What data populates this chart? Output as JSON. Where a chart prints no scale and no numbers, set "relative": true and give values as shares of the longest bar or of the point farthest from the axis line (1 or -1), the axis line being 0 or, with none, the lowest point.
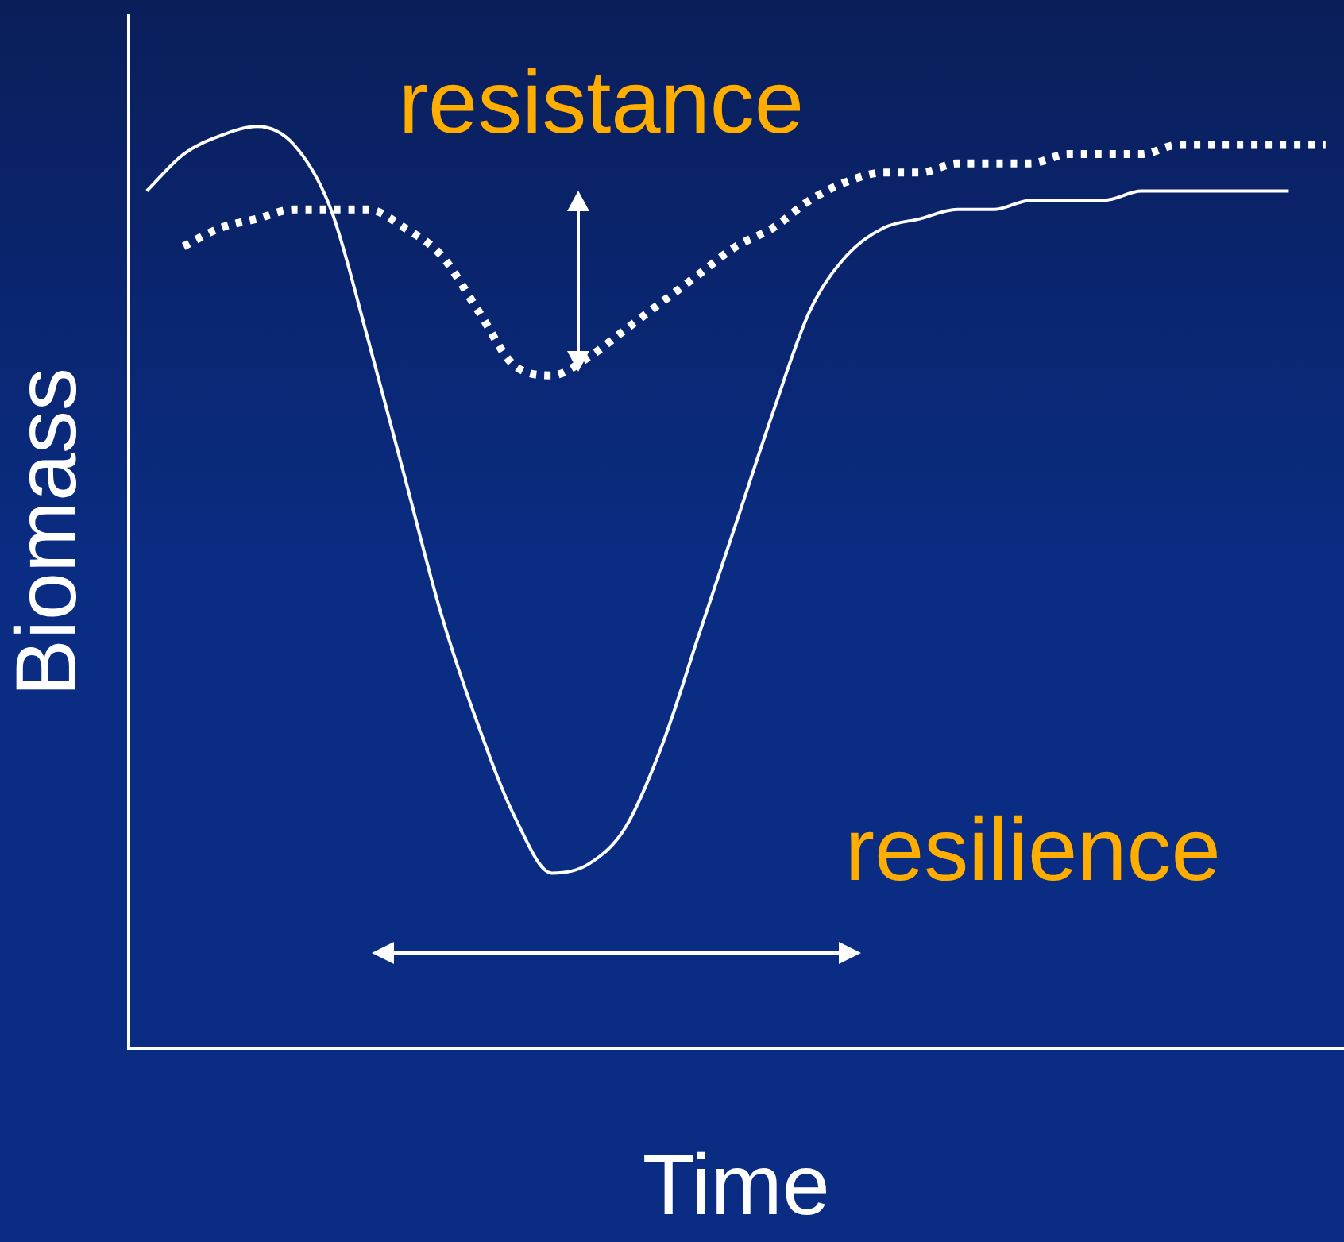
{
  "chart_data": {
    "type": "line",
    "relative": true,
    "xlabel": "Time",
    "ylabel": "Biomass",
    "annotations": [
      "resistance",
      "resilience"
    ],
    "categories": [
      null,
      null,
      null,
      null,
      null,
      null,
      null,
      null,
      null,
      null,
      null,
      null,
      null,
      null,
      null,
      null,
      null,
      null,
      null,
      null,
      null,
      null,
      null,
      null,
      null,
      null,
      null,
      null,
      null,
      null,
      null,
      null,
      null
    ],
    "series": [
      {
        "color": "#ffffff",
        "line_style": "solid",
        "values": [
          0.93,
          0.97,
          0.99,
          1,
          0.98,
          0.91,
          0.77,
          0.62,
          0.47,
          0.35,
          0.25,
          0.19,
          0.2,
          0.24,
          0.33,
          0.45,
          0.57,
          0.69,
          0.8,
          0.86,
          0.89,
          0.9,
          0.91,
          0.91,
          0.92,
          0.92,
          0.92,
          0.93,
          0.93,
          0.93,
          0.93,
          0.93,
          null
        ]
      },
      {
        "color": "#ffffff",
        "line_style": "dotted",
        "values": [
          null,
          0.87,
          0.89,
          0.9,
          0.91,
          0.91,
          0.91,
          0.89,
          0.86,
          0.8,
          0.74,
          0.73,
          0.75,
          0.78,
          0.81,
          0.84,
          0.87,
          0.89,
          0.92,
          0.94,
          0.95,
          0.95,
          0.96,
          0.96,
          0.96,
          0.97,
          0.97,
          0.97,
          0.98,
          0.98,
          0.98,
          0.98,
          0.98
        ]
      }
    ]
  }
}
